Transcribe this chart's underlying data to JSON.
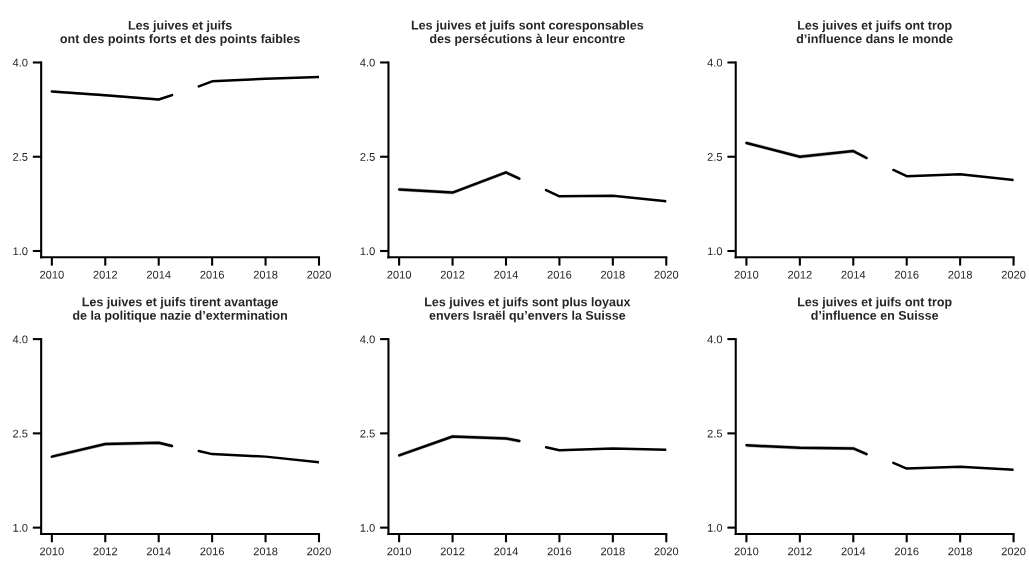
{
  "chart_data": [
    {
      "type": "line",
      "title": "Les juives et juifs\nont des points forts et des points faibles",
      "xlim": [
        2009.6,
        2020
      ],
      "ylim": [
        0.9,
        4.0
      ],
      "xticks": [
        2010,
        2012,
        2014,
        2016,
        2018,
        2020
      ],
      "yticks": [
        {
          "value": 1.0,
          "label": "1.0"
        },
        {
          "value": 2.5,
          "label": "2.5"
        },
        {
          "value": 4.0,
          "label": "4.0"
        }
      ],
      "grid": false,
      "series": [
        {
          "color": "#000000",
          "x": [
            2010,
            2012,
            2014,
            2014.5
          ],
          "values": [
            3.54,
            3.48,
            3.41,
            3.48
          ],
          "lower": [
            3.52,
            3.46,
            3.39,
            3.46
          ],
          "upper": [
            3.56,
            3.5,
            3.43,
            3.5
          ]
        },
        {
          "color": "#000000",
          "x": [
            2015.5,
            2016,
            2018,
            2020
          ],
          "values": [
            3.62,
            3.7,
            3.74,
            3.77
          ]
        }
      ]
    },
    {
      "type": "line",
      "title": "Les juives et juifs sont coresponsables\ndes persécutions à leur encontre",
      "xlim": [
        2009.6,
        2020
      ],
      "ylim": [
        0.9,
        4.0
      ],
      "xticks": [
        2010,
        2012,
        2014,
        2016,
        2018,
        2020
      ],
      "yticks": [
        {
          "value": 1.0,
          "label": "1.0"
        },
        {
          "value": 2.5,
          "label": "2.5"
        },
        {
          "value": 4.0,
          "label": "4.0"
        }
      ],
      "grid": false,
      "series": [
        {
          "color": "#000000",
          "x": [
            2010,
            2012,
            2014,
            2014.5
          ],
          "values": [
            1.98,
            1.93,
            2.25,
            2.15
          ],
          "lower": [
            1.95,
            1.9,
            2.22,
            2.12
          ],
          "upper": [
            2.01,
            1.96,
            2.28,
            2.18
          ]
        },
        {
          "color": "#000000",
          "x": [
            2015.5,
            2016,
            2018,
            2020
          ],
          "values": [
            1.97,
            1.87,
            1.88,
            1.79
          ]
        }
      ]
    },
    {
      "type": "line",
      "title": "Les juives et juifs ont trop\nd’influence dans le monde",
      "xlim": [
        2009.6,
        2020
      ],
      "ylim": [
        0.9,
        4.0
      ],
      "xticks": [
        2010,
        2012,
        2014,
        2016,
        2018,
        2020
      ],
      "yticks": [
        {
          "value": 1.0,
          "label": "1.0"
        },
        {
          "value": 2.5,
          "label": "2.5"
        },
        {
          "value": 4.0,
          "label": "4.0"
        }
      ],
      "grid": false,
      "series": [
        {
          "color": "#000000",
          "x": [
            2010,
            2012,
            2014,
            2014.5
          ],
          "values": [
            2.72,
            2.5,
            2.59,
            2.48
          ],
          "lower": [
            2.69,
            2.47,
            2.56,
            2.45
          ],
          "upper": [
            2.75,
            2.53,
            2.62,
            2.51
          ]
        },
        {
          "color": "#000000",
          "x": [
            2015.5,
            2016,
            2018,
            2020
          ],
          "values": [
            2.29,
            2.19,
            2.22,
            2.13
          ]
        }
      ]
    },
    {
      "type": "line",
      "title": "Les juives et juifs tirent avantage\nde la politique nazie d’extermination",
      "xlim": [
        2009.6,
        2020
      ],
      "ylim": [
        0.9,
        4.0
      ],
      "xticks": [
        2010,
        2012,
        2014,
        2016,
        2018,
        2020
      ],
      "yticks": [
        {
          "value": 1.0,
          "label": "1.0"
        },
        {
          "value": 2.5,
          "label": "2.5"
        },
        {
          "value": 4.0,
          "label": "4.0"
        }
      ],
      "grid": false,
      "series": [
        {
          "color": "#000000",
          "x": [
            2010,
            2012,
            2014,
            2014.5
          ],
          "values": [
            2.13,
            2.33,
            2.35,
            2.3
          ],
          "lower": [
            2.1,
            2.3,
            2.32,
            2.27
          ],
          "upper": [
            2.16,
            2.36,
            2.38,
            2.33
          ]
        },
        {
          "color": "#000000",
          "x": [
            2015.5,
            2016,
            2018,
            2020
          ],
          "values": [
            2.22,
            2.17,
            2.13,
            2.04
          ]
        }
      ]
    },
    {
      "type": "line",
      "title": "Les juives et juifs sont plus loyaux\nenvers Israël qu’envers la Suisse",
      "xlim": [
        2009.6,
        2020
      ],
      "ylim": [
        0.9,
        4.0
      ],
      "xticks": [
        2010,
        2012,
        2014,
        2016,
        2018,
        2020
      ],
      "yticks": [
        {
          "value": 1.0,
          "label": "1.0"
        },
        {
          "value": 2.5,
          "label": "2.5"
        },
        {
          "value": 4.0,
          "label": "4.0"
        }
      ],
      "grid": false,
      "series": [
        {
          "color": "#000000",
          "x": [
            2010,
            2012,
            2014,
            2014.5
          ],
          "values": [
            2.15,
            2.45,
            2.42,
            2.38
          ],
          "lower": [
            2.12,
            2.42,
            2.39,
            2.35
          ],
          "upper": [
            2.18,
            2.48,
            2.45,
            2.41
          ]
        },
        {
          "color": "#000000",
          "x": [
            2015.5,
            2016,
            2018,
            2020
          ],
          "values": [
            2.28,
            2.23,
            2.26,
            2.24
          ]
        }
      ]
    },
    {
      "type": "line",
      "title": "Les juives et juifs ont trop\nd’influence en Suisse",
      "xlim": [
        2009.6,
        2020
      ],
      "ylim": [
        0.9,
        4.0
      ],
      "xticks": [
        2010,
        2012,
        2014,
        2016,
        2018,
        2020
      ],
      "yticks": [
        {
          "value": 1.0,
          "label": "1.0"
        },
        {
          "value": 2.5,
          "label": "2.5"
        },
        {
          "value": 4.0,
          "label": "4.0"
        }
      ],
      "grid": false,
      "series": [
        {
          "color": "#000000",
          "x": [
            2010,
            2012,
            2014,
            2014.5
          ],
          "values": [
            2.31,
            2.27,
            2.26,
            2.17
          ],
          "lower": [
            2.28,
            2.24,
            2.23,
            2.14
          ],
          "upper": [
            2.34,
            2.3,
            2.29,
            2.2
          ]
        },
        {
          "color": "#000000",
          "x": [
            2015.5,
            2016,
            2018,
            2020
          ],
          "values": [
            2.03,
            1.94,
            1.97,
            1.92
          ]
        }
      ]
    }
  ]
}
